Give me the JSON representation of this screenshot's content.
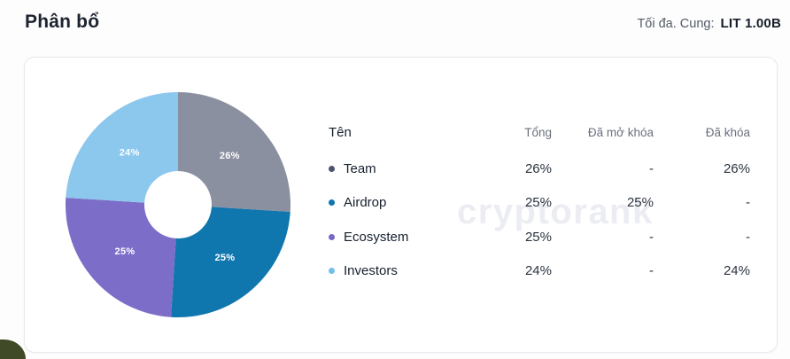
{
  "page": {
    "title": "Phân bổ",
    "max_supply_label": "Tối đa. Cung:",
    "max_supply_value": "LIT 1.00B"
  },
  "watermark": "cryptorank",
  "chart_data": {
    "type": "pie",
    "variant": "donut",
    "title": "Phân bổ (token allocation)",
    "categories": [
      "Team",
      "Airdrop",
      "Ecosystem",
      "Investors"
    ],
    "values": [
      26,
      25,
      25,
      24
    ],
    "slice_labels": [
      "26%",
      "25%",
      "25%",
      "24%"
    ],
    "colors": [
      "#8b90a1",
      "#0f76ae",
      "#7c6dc8",
      "#8cc7ee"
    ],
    "start_angle_deg": 0,
    "direction": "clockwise",
    "inner_radius_ratio": 0.29,
    "label_color": "#ffffff",
    "legend_position": "table-right"
  },
  "table": {
    "columns": [
      "Tên",
      "Tổng",
      "Đã mở khóa",
      "Đã khóa"
    ],
    "rows": [
      {
        "name": "Team",
        "dot_color": "#4d5370",
        "total": "26%",
        "unlocked": "-",
        "locked": "26%"
      },
      {
        "name": "Airdrop",
        "dot_color": "#0e75ad",
        "total": "25%",
        "unlocked": "25%",
        "locked": "-"
      },
      {
        "name": "Ecosystem",
        "dot_color": "#7768c5",
        "total": "25%",
        "unlocked": "-",
        "locked": "-"
      },
      {
        "name": "Investors",
        "dot_color": "#72bee9",
        "total": "24%",
        "unlocked": "-",
        "locked": "24%"
      }
    ]
  }
}
